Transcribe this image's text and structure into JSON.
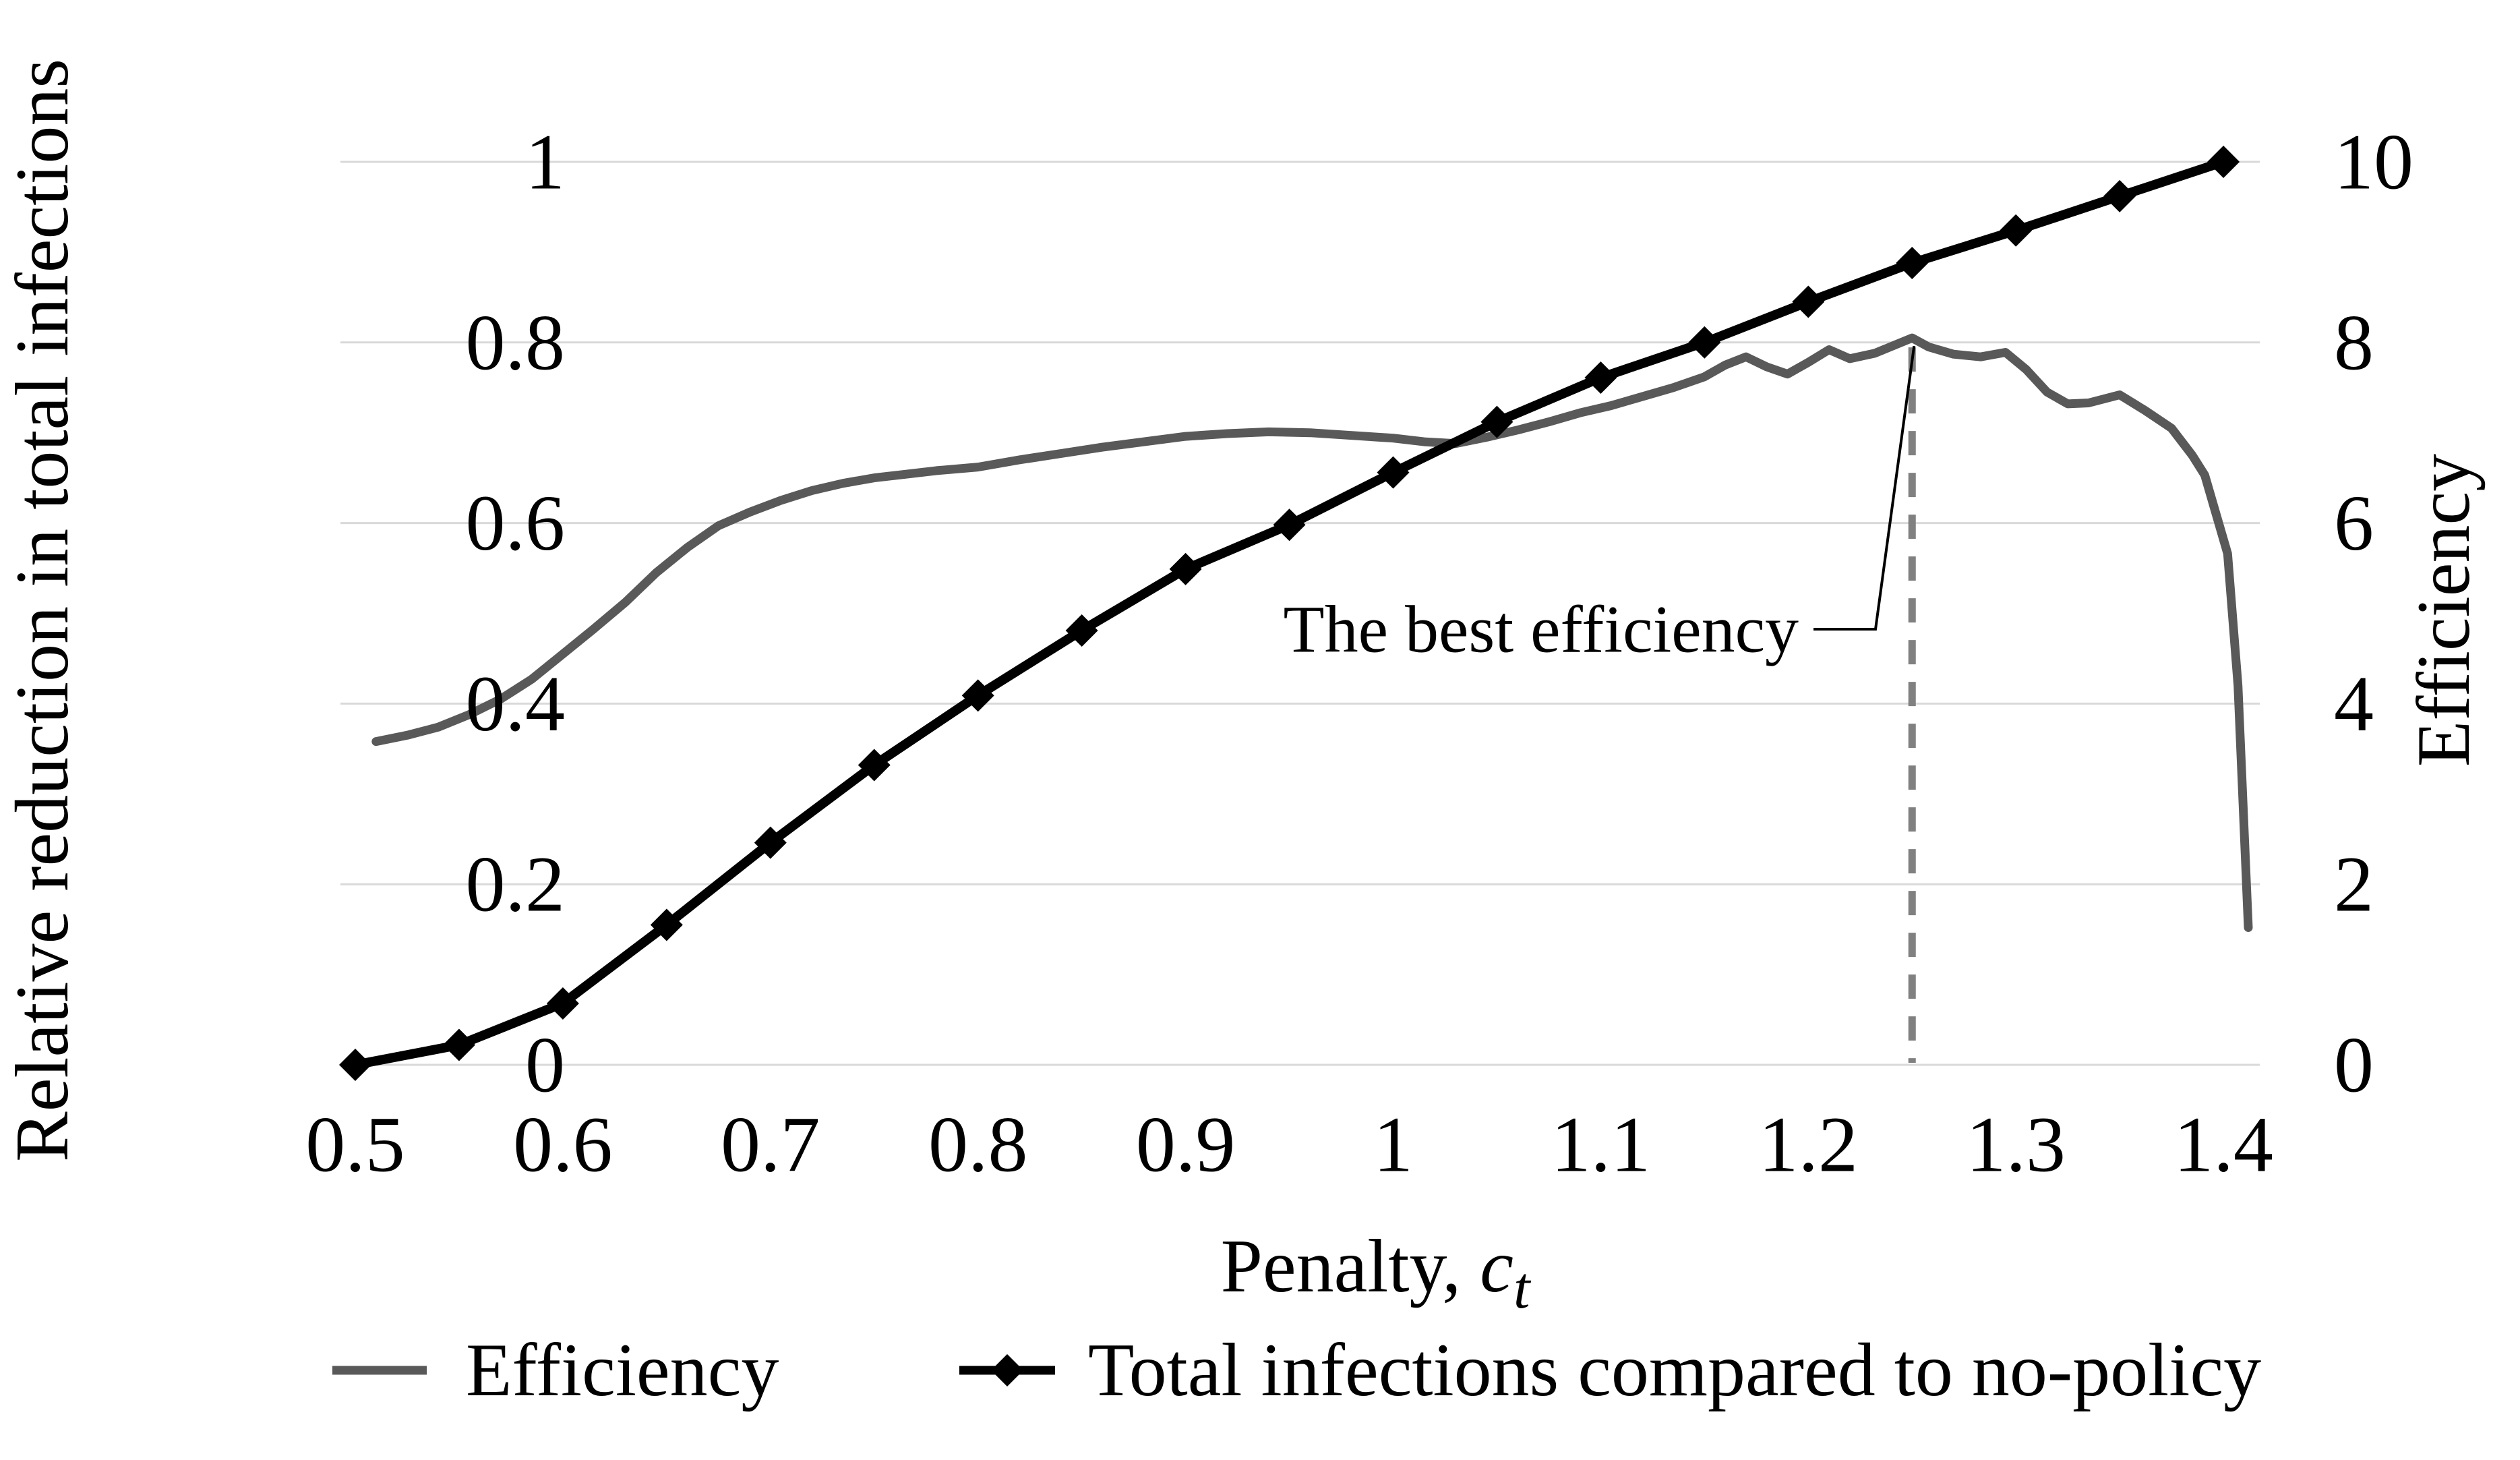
{
  "chart_data": {
    "type": "line",
    "title": "",
    "xlabel": {
      "prefix": "Penalty, ",
      "symbol": "c",
      "subscript": "t"
    },
    "ylabel_left": "Relative reduction in total infections",
    "ylabel_right": "Efficiency",
    "xlim": [
      0.5,
      1.4
    ],
    "ylim_left": [
      0,
      1
    ],
    "ylim_right": [
      0,
      10
    ],
    "grid": "horizontal-only",
    "legend_position": "bottom",
    "x_ticks": [
      {
        "label": "0.5",
        "value": 0.5
      },
      {
        "label": "0.6",
        "value": 0.6
      },
      {
        "label": "0.7",
        "value": 0.7
      },
      {
        "label": "0.8",
        "value": 0.8
      },
      {
        "label": "0.9",
        "value": 0.9
      },
      {
        "label": "1",
        "value": 1.0
      },
      {
        "label": "1.1",
        "value": 1.1
      },
      {
        "label": "1.2",
        "value": 1.2
      },
      {
        "label": "1.3",
        "value": 1.3
      },
      {
        "label": "1.4",
        "value": 1.4
      }
    ],
    "y_left_ticks": [
      {
        "label": "0",
        "value": 0.0
      },
      {
        "label": "0.2",
        "value": 0.2
      },
      {
        "label": "0.4",
        "value": 0.4
      },
      {
        "label": "0.6",
        "value": 0.6
      },
      {
        "label": "0.8",
        "value": 0.8
      },
      {
        "label": "1",
        "value": 1.0
      }
    ],
    "y_right_ticks": [
      {
        "label": "0",
        "value": 0
      },
      {
        "label": "2",
        "value": 2
      },
      {
        "label": "4",
        "value": 4
      },
      {
        "label": "6",
        "value": 6
      },
      {
        "label": "8",
        "value": 8
      },
      {
        "label": "10",
        "value": 10
      }
    ],
    "annotation": {
      "text": "The best efficiency",
      "x": 1.25,
      "peak_value": 8.05
    },
    "colors": {
      "efficiency_line": "#595959",
      "infections_line": "#000000",
      "gridline": "#d9d9d9",
      "dashed_line": "#808080",
      "leader_line": "#000000",
      "text": "#000000"
    },
    "series": [
      {
        "name": "Efficiency",
        "axis": "right",
        "marker": "none",
        "points": [
          [
            0.51,
            3.58
          ],
          [
            0.525,
            3.65
          ],
          [
            0.54,
            3.74
          ],
          [
            0.555,
            3.88
          ],
          [
            0.57,
            4.05
          ],
          [
            0.585,
            4.27
          ],
          [
            0.6,
            4.55
          ],
          [
            0.615,
            4.83
          ],
          [
            0.63,
            5.12
          ],
          [
            0.645,
            5.45
          ],
          [
            0.66,
            5.73
          ],
          [
            0.675,
            5.97
          ],
          [
            0.69,
            6.12
          ],
          [
            0.705,
            6.25
          ],
          [
            0.72,
            6.36
          ],
          [
            0.735,
            6.44
          ],
          [
            0.75,
            6.5
          ],
          [
            0.765,
            6.54
          ],
          [
            0.78,
            6.58
          ],
          [
            0.8,
            6.62
          ],
          [
            0.82,
            6.7
          ],
          [
            0.84,
            6.77
          ],
          [
            0.86,
            6.84
          ],
          [
            0.88,
            6.9
          ],
          [
            0.9,
            6.96
          ],
          [
            0.92,
            6.99
          ],
          [
            0.94,
            7.01
          ],
          [
            0.96,
            7.0
          ],
          [
            0.98,
            6.97
          ],
          [
            1.0,
            6.94
          ],
          [
            1.015,
            6.9
          ],
          [
            1.03,
            6.88
          ],
          [
            1.045,
            6.95
          ],
          [
            1.06,
            7.03
          ],
          [
            1.075,
            7.12
          ],
          [
            1.09,
            7.22
          ],
          [
            1.105,
            7.3
          ],
          [
            1.12,
            7.4
          ],
          [
            1.135,
            7.5
          ],
          [
            1.15,
            7.62
          ],
          [
            1.16,
            7.75
          ],
          [
            1.17,
            7.84
          ],
          [
            1.18,
            7.73
          ],
          [
            1.19,
            7.65
          ],
          [
            1.2,
            7.78
          ],
          [
            1.21,
            7.92
          ],
          [
            1.22,
            7.82
          ],
          [
            1.232,
            7.88
          ],
          [
            1.25,
            8.05
          ],
          [
            1.258,
            7.95
          ],
          [
            1.27,
            7.87
          ],
          [
            1.283,
            7.84
          ],
          [
            1.295,
            7.89
          ],
          [
            1.305,
            7.7
          ],
          [
            1.315,
            7.45
          ],
          [
            1.325,
            7.32
          ],
          [
            1.335,
            7.33
          ],
          [
            1.35,
            7.42
          ],
          [
            1.362,
            7.25
          ],
          [
            1.375,
            7.05
          ],
          [
            1.385,
            6.75
          ],
          [
            1.391,
            6.53
          ],
          [
            1.402,
            5.66
          ],
          [
            1.407,
            4.2
          ],
          [
            1.412,
            1.52
          ]
        ]
      },
      {
        "name": "Total infections compared to no-policy",
        "axis": "left",
        "marker": "diamond",
        "points": [
          [
            0.5,
            0.0
          ],
          [
            0.55,
            0.022
          ],
          [
            0.6,
            0.068
          ],
          [
            0.65,
            0.155
          ],
          [
            0.7,
            0.246
          ],
          [
            0.75,
            0.332
          ],
          [
            0.8,
            0.409
          ],
          [
            0.85,
            0.481
          ],
          [
            0.9,
            0.549
          ],
          [
            0.95,
            0.598
          ],
          [
            1.0,
            0.656
          ],
          [
            1.05,
            0.712
          ],
          [
            1.1,
            0.761
          ],
          [
            1.15,
            0.8
          ],
          [
            1.2,
            0.845
          ],
          [
            1.25,
            0.888
          ],
          [
            1.3,
            0.924
          ],
          [
            1.35,
            0.962
          ],
          [
            1.4,
            1.0
          ]
        ]
      }
    ]
  }
}
